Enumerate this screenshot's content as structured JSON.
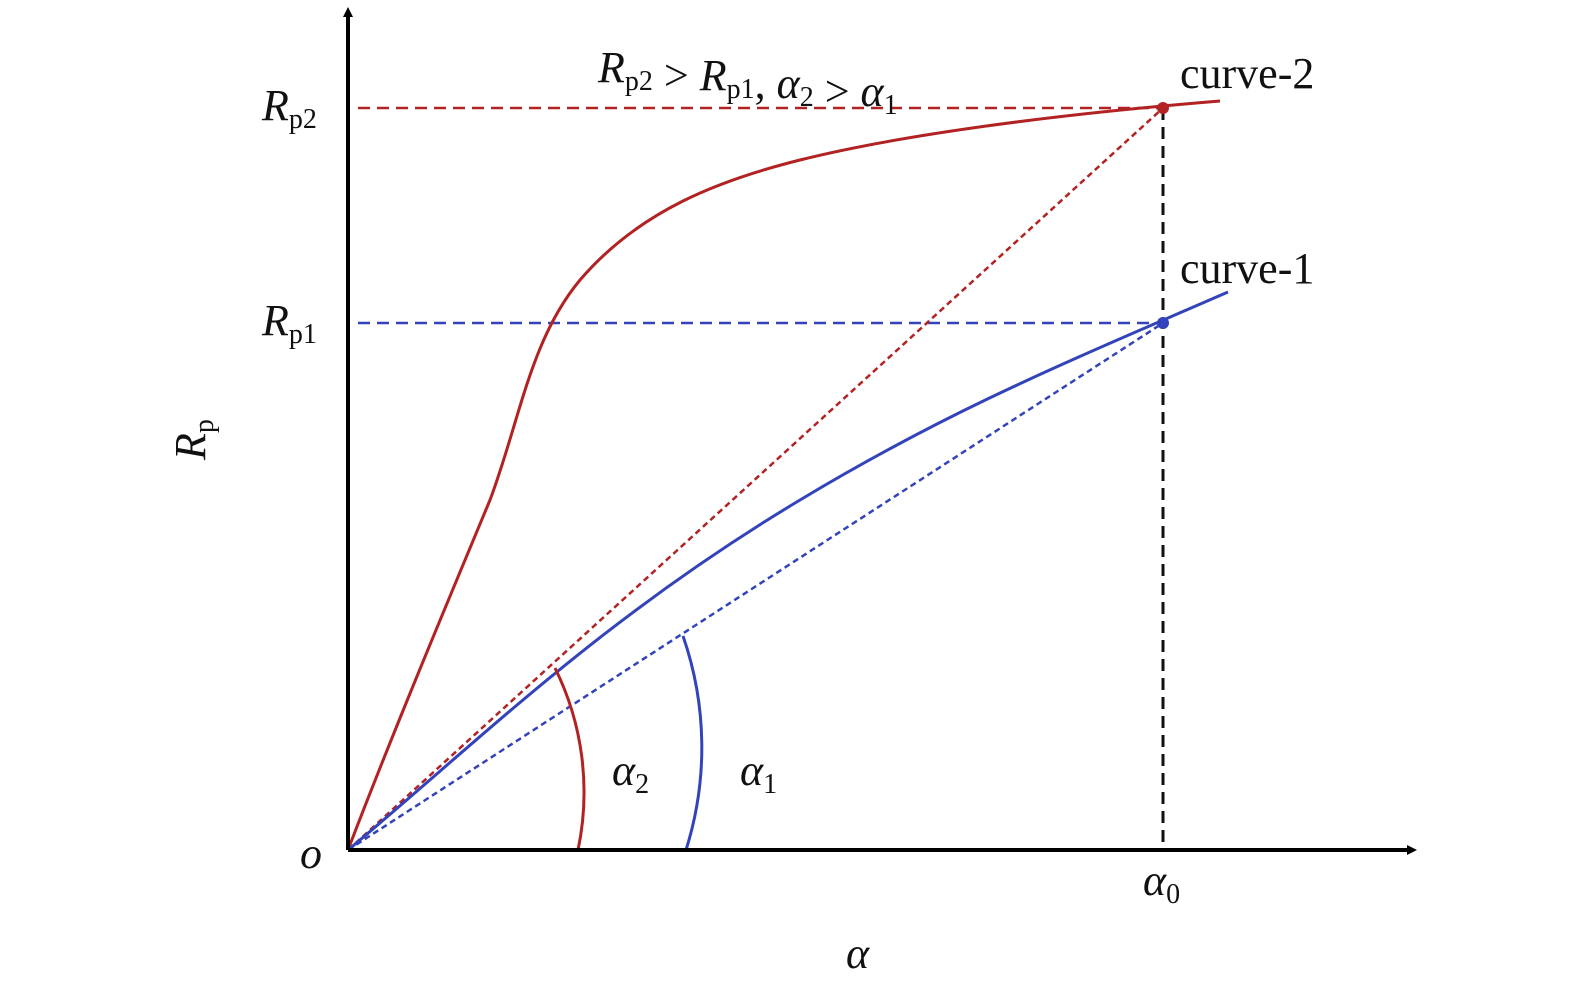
{
  "annotation": [
    {
      "main": "R",
      "sub": "p2"
    },
    {
      "main": " > "
    },
    {
      "main": "R",
      "sub": "p1"
    },
    {
      "main": ", "
    },
    {
      "main": "α",
      "sub": "2"
    },
    {
      "main": " > "
    },
    {
      "main": "α",
      "sub": "1"
    }
  ],
  "labels": {
    "rp2": {
      "main": "R",
      "sub": "p2"
    },
    "rp1": {
      "main": "R",
      "sub": "p1"
    },
    "rp": {
      "main": "R",
      "sub": "p"
    },
    "origin": {
      "main": "o"
    },
    "alpha0": {
      "main": "α",
      "sub": "0"
    },
    "alpha": {
      "main": "α"
    },
    "alpha2": {
      "main": "α",
      "sub": "2"
    },
    "alpha1": {
      "main": "α",
      "sub": "1"
    },
    "curve2": {
      "main": "curve-2"
    },
    "curve1": {
      "main": "curve-1"
    }
  }
}
